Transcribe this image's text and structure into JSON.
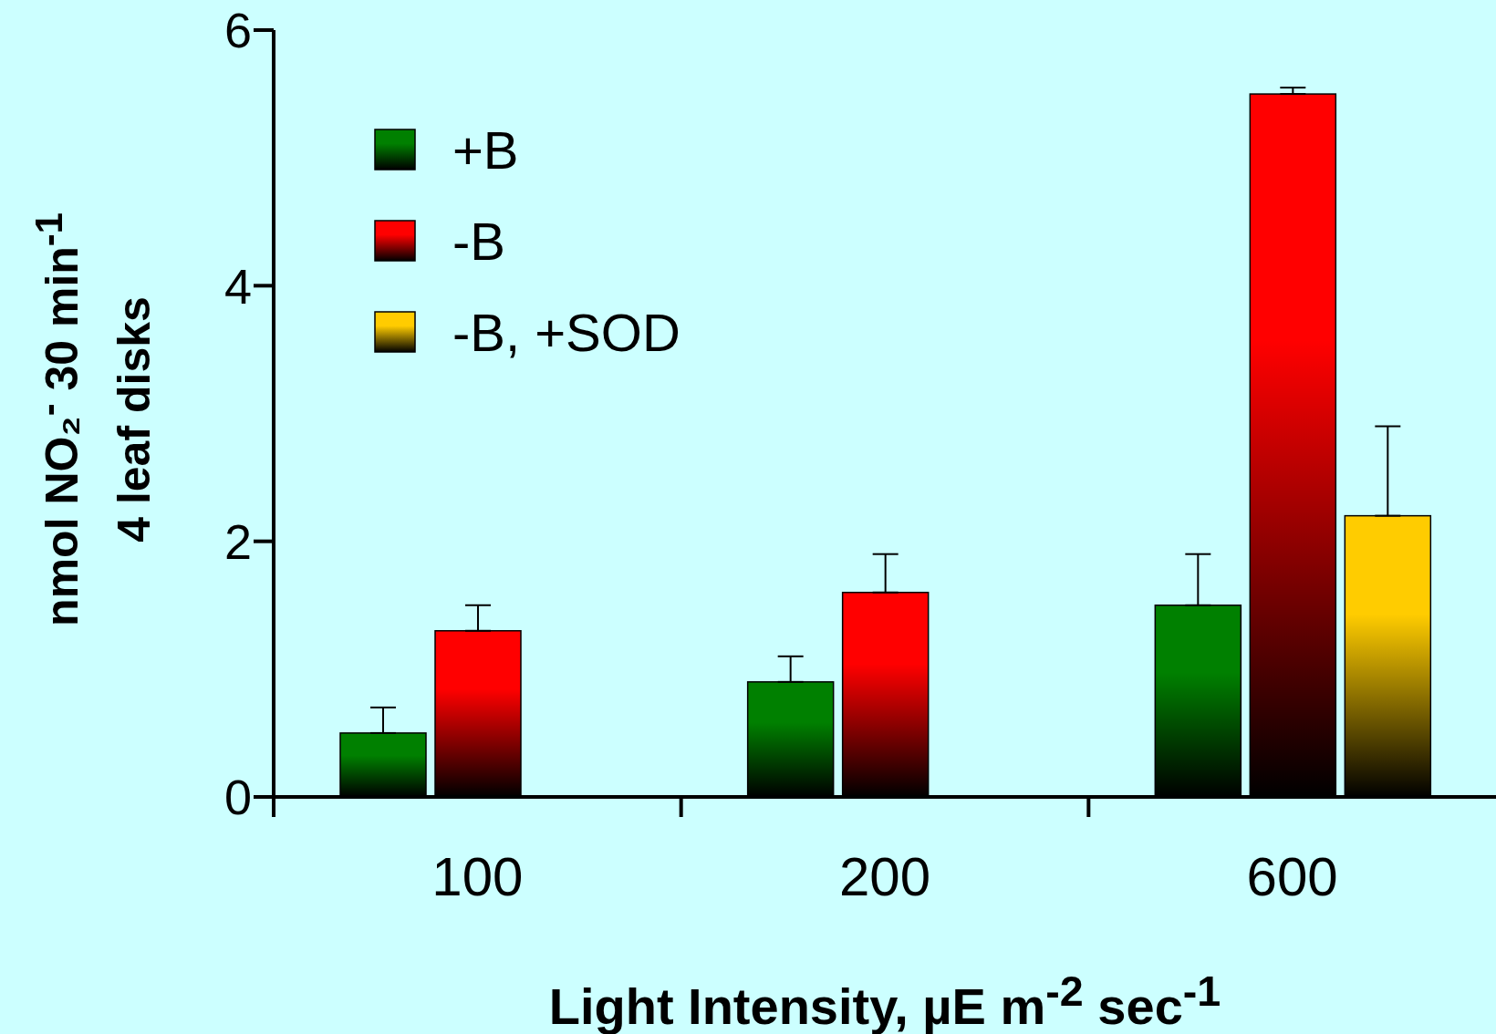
{
  "chart_data": {
    "type": "bar",
    "categories": [
      "100",
      "200",
      "600"
    ],
    "xlabel": "Light Intensity, µE m$^{-2}$ sec$^{-1}$",
    "ylabel": "nmol NO₂$^{-}$ 30 min$^{-1}$\n4 leaf disks",
    "series": [
      {
        "name": "+B",
        "color": "#008000",
        "values": [
          0.5,
          0.9,
          1.5
        ],
        "errors": [
          [
            0.5,
            0.7
          ],
          [
            0.9,
            1.1
          ],
          [
            1.5,
            1.9
          ]
        ]
      },
      {
        "name": "-B",
        "color": "#ff0000",
        "values": [
          1.3,
          1.6,
          5.5
        ],
        "errors": [
          [
            1.3,
            1.5
          ],
          [
            1.6,
            1.9
          ],
          [
            5.5,
            5.55
          ]
        ]
      },
      {
        "name": "-B, +SOD",
        "color": "#ffcc00",
        "values": [
          null,
          null,
          2.2
        ],
        "errors": [
          null,
          null,
          [
            2.2,
            2.9
          ]
        ]
      }
    ],
    "ylim": [
      0,
      6
    ],
    "yticks": [
      0,
      2,
      4,
      6
    ],
    "legend": "top left"
  }
}
